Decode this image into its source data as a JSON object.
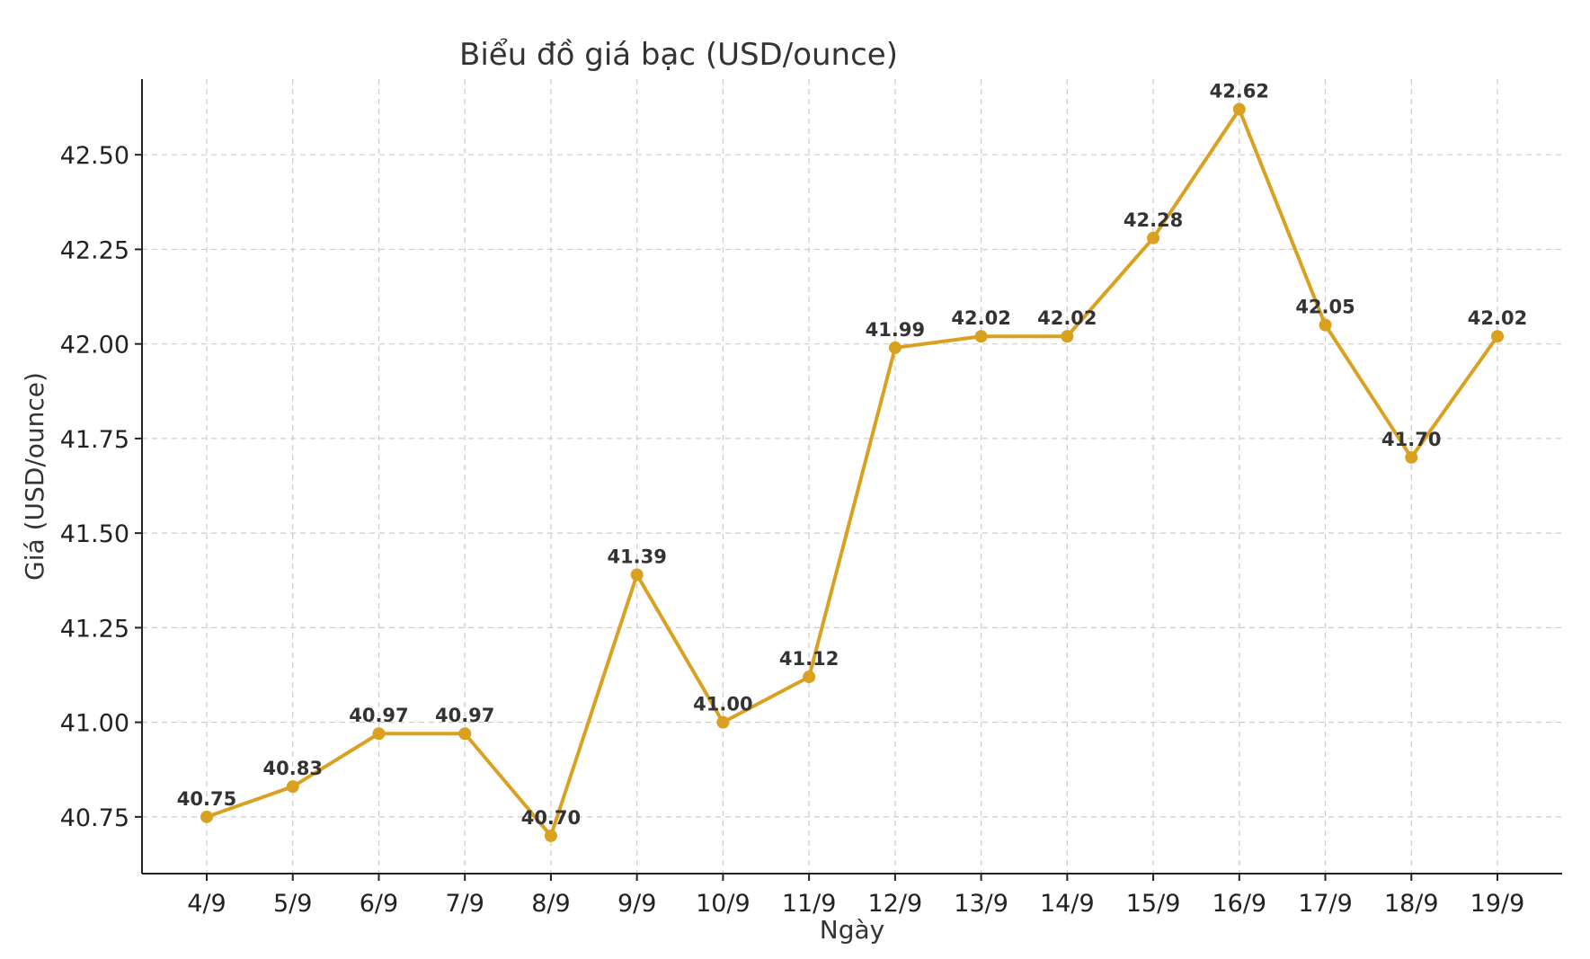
{
  "chart_data": {
    "type": "line",
    "title": "Biểu đồ giá bạc (USD/ounce)",
    "xlabel": "Ngày",
    "ylabel": "Giá (USD/ounce)",
    "categories": [
      "4/9",
      "5/9",
      "6/9",
      "7/9",
      "8/9",
      "9/9",
      "10/9",
      "11/9",
      "12/9",
      "13/9",
      "14/9",
      "15/9",
      "16/9",
      "17/9",
      "18/9",
      "19/9"
    ],
    "series": [
      {
        "values": [
          40.75,
          40.83,
          40.97,
          40.97,
          40.7,
          41.39,
          41.0,
          41.12,
          41.99,
          42.02,
          42.02,
          42.28,
          42.62,
          42.05,
          41.7,
          42.02
        ],
        "labels": [
          "40.75",
          "40.83",
          "40.97",
          "40.97",
          "40.70",
          "41.39",
          "41.00",
          "41.12",
          "41.99",
          "42.02",
          "42.02",
          "42.28",
          "42.62",
          "42.05",
          "41.70",
          "42.02"
        ],
        "color": "#DAA020"
      }
    ],
    "ylim": [
      40.6,
      42.7
    ],
    "yticks": [
      "40.75",
      "41.00",
      "41.25",
      "41.50",
      "41.75",
      "42.00",
      "42.25",
      "42.50"
    ],
    "grid": true,
    "legend": "none"
  }
}
